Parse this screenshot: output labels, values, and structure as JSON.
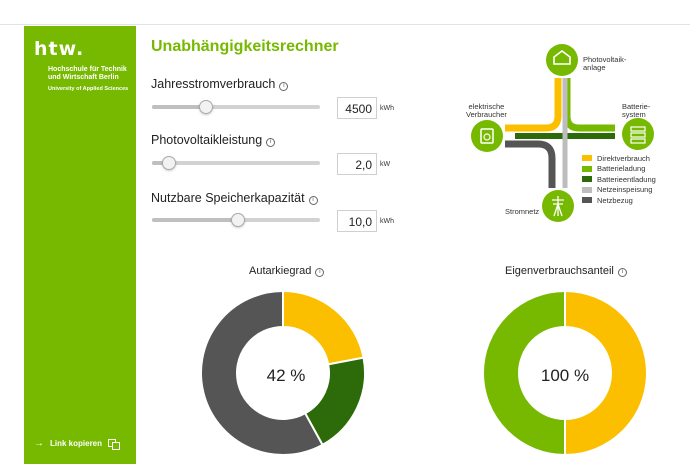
{
  "sidebar": {
    "logo": "htw.",
    "org_line1": "Hochschule für Technik und Wirtschaft Berlin",
    "org_line2": "University of Applied Sciences",
    "copy_link": "Link kopieren",
    "copy_arrow_icon": "arrow-right-icon",
    "copy_icon": "copy-icon",
    "color": "#76b900"
  },
  "title": "Unabhängigkeitsrechner",
  "inputs": {
    "consumption": {
      "label": "Jahresstromverbrauch",
      "value": "4500",
      "unit": "kWh",
      "slider_fraction": 0.32
    },
    "pv": {
      "label": "Photovoltaikleistung",
      "value": "2,0",
      "unit": "kW",
      "slider_fraction": 0.1
    },
    "storage": {
      "label": "Nutzbare Speicherkapazität",
      "value": "10,0",
      "unit": "kWh",
      "slider_fraction": 0.51
    }
  },
  "diagram": {
    "pv_label": "Photovoltaik-\nanlage",
    "consumer_label": "elektrische\nVerbraucher",
    "battery_label": "Batterie-\nsystem",
    "grid_label": "Stromnetz",
    "legend": [
      {
        "label": "Direktverbrauch",
        "color": "#fcbf00"
      },
      {
        "label": "Batterieladung",
        "color": "#76b900"
      },
      {
        "label": "Batterieentladung",
        "color": "#2d6a0a"
      },
      {
        "label": "Netzeinspeisung",
        "color": "#bdbdbd"
      },
      {
        "label": "Netzbezug",
        "color": "#555555"
      }
    ]
  },
  "autarky": {
    "title": "Autarkiegrad",
    "center": "42 %",
    "segments": [
      {
        "value": 22,
        "color": "#fcbf00"
      },
      {
        "value": 20,
        "color": "#2d6a0a"
      },
      {
        "value": 58,
        "color": "#555555"
      }
    ]
  },
  "self_consumption": {
    "title": "Eigenverbrauchsanteil",
    "center": "100 %",
    "segments": [
      {
        "value": 50,
        "color": "#fcbf00"
      },
      {
        "value": 50,
        "color": "#76b900"
      }
    ]
  }
}
